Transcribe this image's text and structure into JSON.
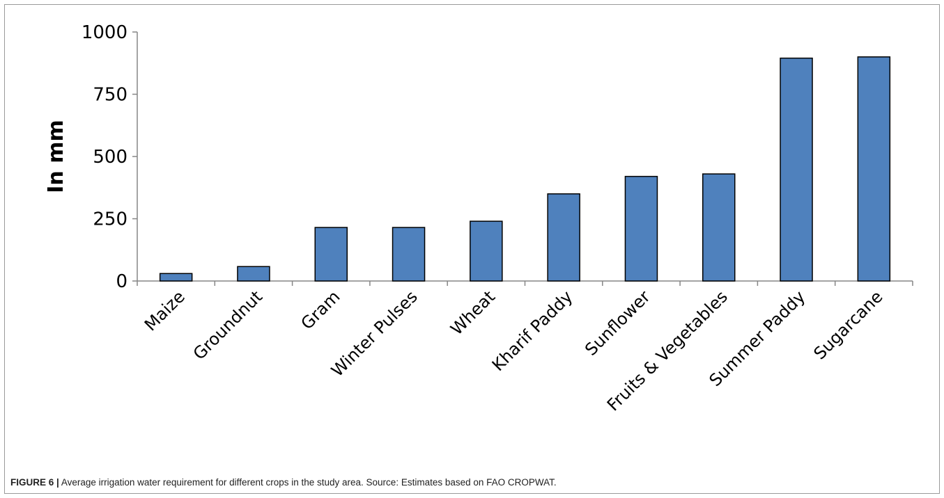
{
  "caption": {
    "label": "FIGURE 6 |",
    "text": "Average irrigation water requirement for different crops in the study area. Source: Estimates based on FAO CROPWAT."
  },
  "chart_data": {
    "type": "bar",
    "title": "",
    "xlabel": "",
    "ylabel": "In mm",
    "ylim": [
      0,
      1000
    ],
    "yticks": [
      0,
      250,
      500,
      750,
      1000
    ],
    "grid": false,
    "bar_color": "#4F81BD",
    "categories": [
      "Maize",
      "Groundnut",
      "Gram",
      "Winter Pulses",
      "Wheat",
      "Kharif Paddy",
      "Sunflower",
      "Fruits & Vegetables",
      "Summer Paddy",
      "Sugarcane"
    ],
    "values": [
      30,
      58,
      215,
      215,
      240,
      350,
      420,
      430,
      895,
      900
    ]
  }
}
